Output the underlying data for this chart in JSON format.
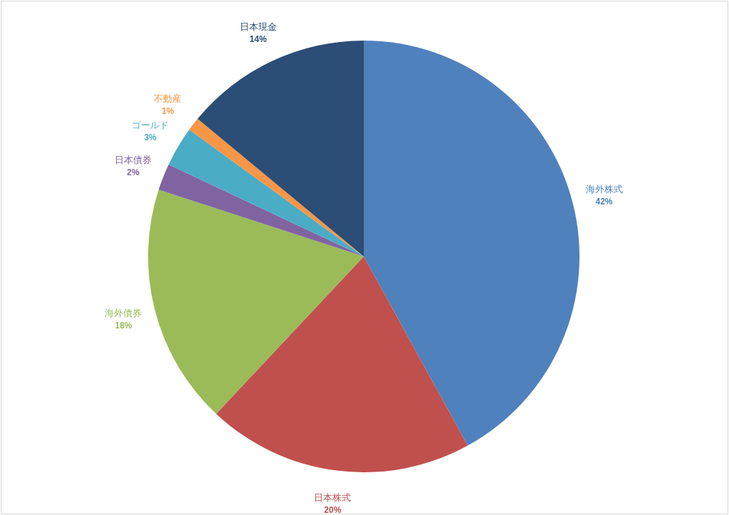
{
  "chart_data": {
    "type": "pie",
    "categories": [
      "海外株式",
      "日本株式",
      "海外債券",
      "日本債券",
      "ゴールド",
      "不動産",
      "日本現金"
    ],
    "values": [
      42,
      20,
      18,
      2,
      3,
      1,
      14
    ],
    "colors": [
      "#4f81bd",
      "#c0504d",
      "#9bbb59",
      "#8064a2",
      "#4bacc6",
      "#f79646",
      "#2c4d75"
    ],
    "value_labels": [
      "42%",
      "20%",
      "18%",
      "2%",
      "3%",
      "1%",
      "14%"
    ]
  }
}
